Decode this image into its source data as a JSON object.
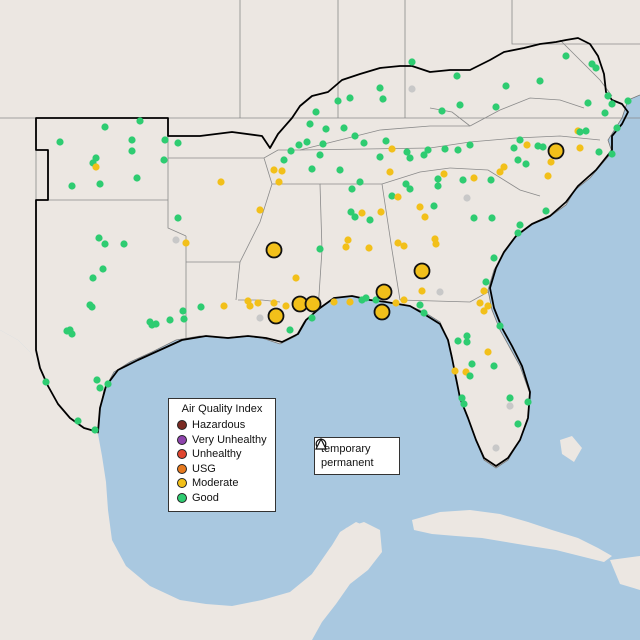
{
  "legend": {
    "title": "Air Quality Index",
    "items": [
      {
        "label": "Hazardous",
        "color": "#7a2a22"
      },
      {
        "label": "Very Unhealthy",
        "color": "#8e44ad"
      },
      {
        "label": "Unhealthy",
        "color": "#e0452f"
      },
      {
        "label": "USG",
        "color": "#e6791e"
      },
      {
        "label": "Moderate",
        "color": "#f2c01a"
      },
      {
        "label": "Good",
        "color": "#2ecc71"
      }
    ]
  },
  "shape_legend": {
    "items": [
      {
        "label": "temporary",
        "icon": "circle-icon"
      },
      {
        "label": "permanent",
        "icon": "triangle-icon"
      }
    ]
  },
  "colors": {
    "ocean": "#a9c8e0",
    "land": "#ece7e2",
    "good": "#2ecc71",
    "moderate": "#f2c01a",
    "no_data": "#c8c8c8"
  }
}
